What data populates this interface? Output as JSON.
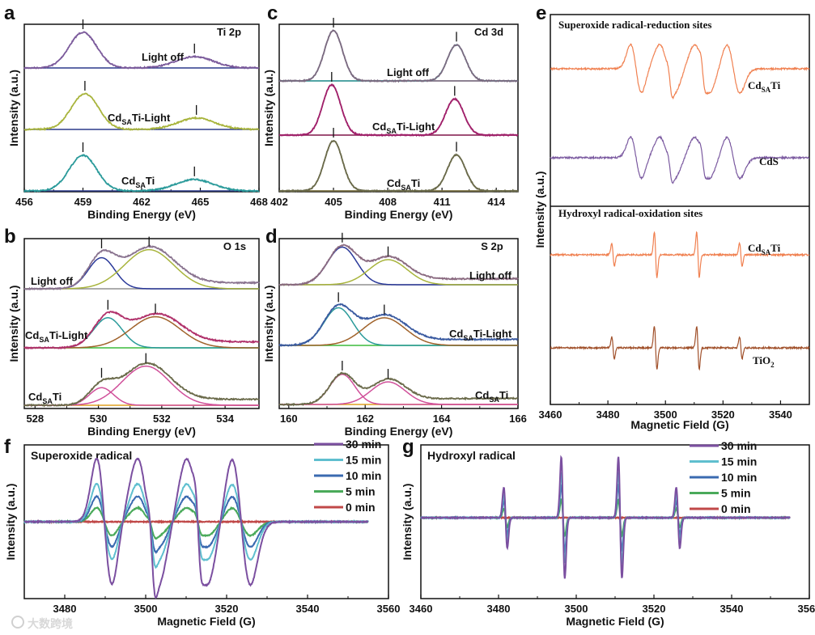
{
  "watermark": "大数跨境",
  "chart_data": [
    {
      "letter": "a",
      "type": "line",
      "title": "Ti 2p",
      "xlabel": "Binding Energy (eV)",
      "ylabel": "Intensity (a.u.)",
      "xlim": [
        456,
        468
      ],
      "xticks": [
        456,
        459,
        462,
        465,
        468
      ],
      "grid": false,
      "traces": [
        {
          "label": {
            "base": "Light off",
            "sub": "",
            "rest": ""
          },
          "envelope_color": "#7b5a9b",
          "baseline_color": "#2b3a8c",
          "markers": [
            459.0,
            464.7
          ],
          "components": [
            {
              "center": 459.0,
              "width": 0.7,
              "height": 1.0,
              "color": "#7b5a9b"
            },
            {
              "center": 464.7,
              "width": 0.95,
              "height": 0.32,
              "color": "#7b5a9b"
            }
          ]
        },
        {
          "label": {
            "base": "Cd",
            "sub": "SA",
            "rest": "Ti-Light"
          },
          "envelope_color": "#a8b43c",
          "baseline_color": "#2b3a8c",
          "markers": [
            459.1,
            464.8
          ],
          "components": [
            {
              "center": 459.1,
              "width": 0.7,
              "height": 1.0,
              "color": "#a8b43c"
            },
            {
              "center": 464.8,
              "width": 0.95,
              "height": 0.32,
              "color": "#a8b43c"
            }
          ]
        },
        {
          "label": {
            "base": "Cd",
            "sub": "SA",
            "rest": "Ti"
          },
          "envelope_color": "#2a9a9a",
          "baseline_color": "#2b3a8c",
          "markers": [
            459.0,
            464.7
          ],
          "components": [
            {
              "center": 459.0,
              "width": 0.7,
              "height": 1.0,
              "color": "#2a9a9a"
            },
            {
              "center": 464.7,
              "width": 0.95,
              "height": 0.32,
              "color": "#2a9a9a"
            }
          ]
        }
      ]
    },
    {
      "letter": "c",
      "type": "line",
      "title": "Cd 3d",
      "xlabel": "Binding Energy (eV)",
      "ylabel": "Intensity (a.u.)",
      "xlim": [
        402,
        415.2
      ],
      "xticks": [
        402,
        405,
        408,
        411,
        414
      ],
      "grid": false,
      "traces": [
        {
          "label": {
            "base": "Light off",
            "sub": "",
            "rest": ""
          },
          "envelope_color": "#7a6a80",
          "baseline_color": "#909090",
          "markers": [
            405.0,
            411.8
          ],
          "components": [
            {
              "center": 405.0,
              "width": 0.5,
              "height": 1.0,
              "color": "#7a6a80"
            },
            {
              "center": 411.8,
              "width": 0.5,
              "height": 0.72,
              "color": "#2a9a9a"
            }
          ]
        },
        {
          "label": {
            "base": "Cd",
            "sub": "SA",
            "rest": "Ti-Light"
          },
          "envelope_color": "#a0206a",
          "baseline_color": "#3cbc3c",
          "markers": [
            404.9,
            411.7
          ],
          "components": [
            {
              "center": 404.9,
              "width": 0.5,
              "height": 1.0,
              "color": "#a0206a"
            },
            {
              "center": 411.7,
              "width": 0.5,
              "height": 0.72,
              "color": "#a0206a"
            }
          ]
        },
        {
          "label": {
            "base": "Cd",
            "sub": "SA",
            "rest": "Ti"
          },
          "envelope_color": "#6a6a4a",
          "baseline_color": "#e0a020",
          "markers": [
            405.0,
            411.8
          ],
          "components": [
            {
              "center": 405.0,
              "width": 0.5,
              "height": 1.0,
              "color": "#6a6a4a"
            },
            {
              "center": 411.8,
              "width": 0.5,
              "height": 0.72,
              "color": "#6a6a4a"
            }
          ]
        }
      ]
    },
    {
      "letter": "b",
      "type": "line",
      "title": "O 1s",
      "xlabel": "Binding Energy (eV)",
      "ylabel": "Intensity (a.u.)",
      "xlim": [
        527.66,
        535.07
      ],
      "xticks": [
        528,
        530,
        532,
        534
      ],
      "grid": false,
      "traces": [
        {
          "label": {
            "base": "Light off",
            "sub": "",
            "rest": ""
          },
          "envelope_color": "#8a7490",
          "baseline_color": "#909090",
          "markers": [
            530.1,
            531.6
          ],
          "components": [
            {
              "center": 530.1,
              "width": 0.42,
              "height": 0.62,
              "color": "#2b3a9a"
            },
            {
              "center": 531.6,
              "width": 0.78,
              "height": 0.78,
              "color": "#a8b43c"
            }
          ]
        },
        {
          "label": {
            "base": "Cd",
            "sub": "SA",
            "rest": "Ti-Light"
          },
          "envelope_color": "#b0306a",
          "baseline_color": "#3cbc3c",
          "markers": [
            530.3,
            531.8
          ],
          "components": [
            {
              "center": 530.3,
              "width": 0.45,
              "height": 0.6,
              "color": "#2a9a9a"
            },
            {
              "center": 531.8,
              "width": 0.78,
              "height": 0.62,
              "color": "#a0622a"
            }
          ]
        },
        {
          "label": {
            "base": "Cd",
            "sub": "SA",
            "rest": "Ti"
          },
          "envelope_color": "#6a6a4a",
          "baseline_color": "#e0a020",
          "markers": [
            530.1,
            531.5
          ],
          "components": [
            {
              "center": 530.1,
              "width": 0.38,
              "height": 0.35,
              "color": "#d0509a"
            },
            {
              "center": 531.5,
              "width": 0.75,
              "height": 0.78,
              "color": "#d0509a"
            }
          ]
        }
      ]
    },
    {
      "letter": "d",
      "type": "line",
      "title": "S 2p",
      "xlabel": "Binding Energy (eV)",
      "ylabel": "Intensity (a.u.)",
      "xlim": [
        159.75,
        166
      ],
      "xticks": [
        160,
        162,
        164,
        166
      ],
      "grid": false,
      "traces": [
        {
          "label": {
            "base": "Light off",
            "sub": "",
            "rest": ""
          },
          "envelope_color": "#8a6a80",
          "baseline_color": "#909090",
          "markers": [
            161.4,
            162.6
          ],
          "components": [
            {
              "center": 161.4,
              "width": 0.38,
              "height": 0.75,
              "color": "#2b3a9a"
            },
            {
              "center": 162.6,
              "width": 0.5,
              "height": 0.5,
              "color": "#a8b43c"
            }
          ]
        },
        {
          "label": {
            "base": "Cd",
            "sub": "SA",
            "rest": "Ti-Light"
          },
          "envelope_color": "#3a5aa0",
          "baseline_color": "#3cbc3c",
          "markers": [
            161.3,
            162.5
          ],
          "components": [
            {
              "center": 161.3,
              "width": 0.38,
              "height": 0.75,
              "color": "#2a9a9a"
            },
            {
              "center": 162.5,
              "width": 0.55,
              "height": 0.55,
              "color": "#a0622a"
            }
          ]
        },
        {
          "label": {
            "base": "Cd",
            "sub": "SA",
            "rest": "Ti"
          },
          "envelope_color": "#6a6a4a",
          "baseline_color": "#e0a020",
          "markers": [
            161.4,
            162.6
          ],
          "components": [
            {
              "center": 161.4,
              "width": 0.33,
              "height": 0.6,
              "color": "#d0509a"
            },
            {
              "center": 162.6,
              "width": 0.45,
              "height": 0.45,
              "color": "#d0509a"
            }
          ]
        }
      ]
    },
    {
      "letter": "e",
      "type": "line",
      "xlabel": "Magnetic Field (G)",
      "ylabel": "Intensity (a.u.)",
      "xlim": [
        3460,
        3550
      ],
      "xticks": [
        3460,
        3480,
        3500,
        3520,
        3540
      ],
      "grid": false,
      "sections": [
        {
          "title": "Superoxide radical-reduction sites",
          "line_set": "superoxide",
          "traces": [
            {
              "label": {
                "base": "Cd",
                "sub": "SA",
                "rest": "Ti"
              },
              "color": "#f08050",
              "amplitude": 1.0
            },
            {
              "label": {
                "base": "CdS",
                "sub": "",
                "rest": ""
              },
              "color": "#7b5aa0",
              "amplitude": 0.85
            }
          ]
        },
        {
          "title": "Hydroxyl radical-oxidation sites",
          "line_set": "hydroxyl",
          "traces": [
            {
              "label": {
                "base": "Cd",
                "sub": "SA",
                "rest": "Ti"
              },
              "color": "#f08050",
              "amplitude": 1.0
            },
            {
              "label": {
                "base": "TiO",
                "sub": "2",
                "rest": ""
              },
              "color": "#a0502a",
              "amplitude": 0.95
            }
          ]
        }
      ]
    },
    {
      "letter": "f",
      "type": "line",
      "title": "Superoxide radical",
      "xlabel": "Magnetic Field (G)",
      "ylabel": "Intensity (a.u.)",
      "xlim": [
        3470,
        3560
      ],
      "xticks": [
        3480,
        3500,
        3520,
        3540,
        3560
      ],
      "grid": false,
      "legend": "top-right",
      "line_set": "superoxide",
      "series": [
        {
          "name": "30 min",
          "color": "#7b4fa0",
          "amplitude": 1.0
        },
        {
          "name": "15 min",
          "color": "#5fbfcf",
          "amplitude": 0.6
        },
        {
          "name": "10 min",
          "color": "#3a6ab0",
          "amplitude": 0.4
        },
        {
          "name": "5 min",
          "color": "#4aaa5a",
          "amplitude": 0.22
        },
        {
          "name": "0 min",
          "color": "#c04848",
          "amplitude": 0.0
        }
      ]
    },
    {
      "letter": "g",
      "type": "line",
      "title": "Hydroxyl radical",
      "xlabel": "Magnetic Field (G)",
      "ylabel": "Intensity (a.u.)",
      "xlim": [
        3460,
        3560
      ],
      "xticks": [
        3460,
        3480,
        3500,
        3520,
        3540,
        3560
      ],
      "grid": false,
      "legend": "top-right",
      "line_set": "hydroxyl",
      "series": [
        {
          "name": "30 min",
          "color": "#7b4fa0",
          "amplitude": 1.0
        },
        {
          "name": "15 min",
          "color": "#5fbfcf",
          "amplitude": 0.75
        },
        {
          "name": "10 min",
          "color": "#3a6ab0",
          "amplitude": 0.55
        },
        {
          "name": "5 min",
          "color": "#4aaa5a",
          "amplitude": 0.3
        },
        {
          "name": "0 min",
          "color": "#c04848",
          "amplitude": 0.0
        }
      ]
    }
  ],
  "epr_lines": {
    "superoxide": [
      {
        "center": 3489.8,
        "width": 1.9,
        "amp": 1.0
      },
      {
        "center": 3500.6,
        "width": 2.6,
        "amp": 1.0
      },
      {
        "center": 3501.6,
        "width": 0.7,
        "amp": 0.3
      },
      {
        "center": 3512.7,
        "width": 2.6,
        "amp": 1.0
      },
      {
        "center": 3513.0,
        "width": 0.7,
        "amp": 0.3
      },
      {
        "center": 3523.6,
        "width": 2.3,
        "amp": 1.0
      }
    ],
    "hydroxyl": [
      {
        "center": 3481.8,
        "width": 0.45,
        "amp": 0.5
      },
      {
        "center": 3496.6,
        "width": 0.45,
        "amp": 1.0
      },
      {
        "center": 3511.3,
        "width": 0.45,
        "amp": 1.0
      },
      {
        "center": 3526.2,
        "width": 0.45,
        "amp": 0.5
      }
    ]
  }
}
